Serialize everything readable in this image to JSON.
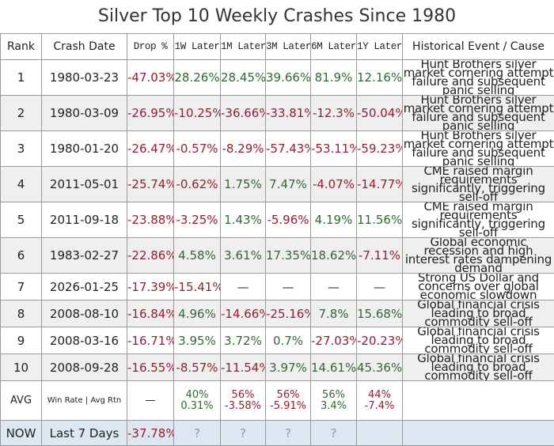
{
  "title": "Silver Top 10 Weekly Crashes Since 1980",
  "headers": [
    "Rank",
    "Crash Date",
    "Drop %",
    "1W Later",
    "1M Later",
    "3M Later",
    "6M Later",
    "1Y Later",
    "Historical Event / Cause"
  ],
  "rows": [
    {
      "rank": "1",
      "date": "1980-03-23",
      "vals": [
        "-47.03%",
        "28.26%",
        "28.45%",
        "39.66%",
        "81.9%",
        "12.16%"
      ],
      "event": "Hunt Brothers silver market cornering attempt failure and subsequent panic selling"
    },
    {
      "rank": "2",
      "date": "1980-03-09",
      "vals": [
        "-26.95%",
        "-10.25%",
        "-36.66%",
        "-33.81%",
        "-12.3%",
        "-50.04%"
      ],
      "event": "Hunt Brothers silver market cornering attempt failure and subsequent panic selling"
    },
    {
      "rank": "3",
      "date": "1980-01-20",
      "vals": [
        "-26.47%",
        "-0.57%",
        "-8.29%",
        "-57.43%",
        "-53.11%",
        "-59.23%"
      ],
      "event": "Hunt Brothers silver market cornering attempt failure and subsequent panic selling"
    },
    {
      "rank": "4",
      "date": "2011-05-01",
      "vals": [
        "-25.74%",
        "-0.62%",
        "1.75%",
        "7.47%",
        "-4.07%",
        "-14.77%"
      ],
      "event": "CME raised margin requirements significantly, triggering sell-off"
    },
    {
      "rank": "5",
      "date": "2011-09-18",
      "vals": [
        "-23.88%",
        "-3.25%",
        "1.43%",
        "-5.96%",
        "4.19%",
        "11.56%"
      ],
      "event": "CME raised margin requirements significantly, triggering sell-off"
    },
    {
      "rank": "6",
      "date": "1983-02-27",
      "vals": [
        "-22.86%",
        "4.58%",
        "3.61%",
        "17.35%",
        "18.62%",
        "-7.11%"
      ],
      "event": "Global economic recession and high interest rates dampening demand"
    },
    {
      "rank": "7",
      "date": "2026-01-25",
      "vals": [
        "-17.39%",
        "-15.41%",
        "—",
        "—",
        "—",
        "—"
      ],
      "event": "Strong US Dollar and concerns over global economic slowdown"
    },
    {
      "rank": "8",
      "date": "2008-08-10",
      "vals": [
        "-16.84%",
        "4.96%",
        "-14.66%",
        "-25.16%",
        "7.8%",
        "15.68%"
      ],
      "event": "Global financial crisis leading to broad commodity sell-off"
    },
    {
      "rank": "9",
      "date": "2008-03-16",
      "vals": [
        "-16.71%",
        "3.95%",
        "3.72%",
        "0.7%",
        "-27.03%",
        "-20.23%"
      ],
      "event": "Global financial crisis leading to broad commodity sell-off"
    },
    {
      "rank": "10",
      "date": "2008-09-28",
      "vals": [
        "-16.55%",
        "-8.57%",
        "-11.54%",
        "3.97%",
        "14.61%",
        "45.36%"
      ],
      "event": "Global financial crisis leading to broad commodity sell-off"
    }
  ],
  "avg": {
    "label": "AVG",
    "sub": "Win Rate | Avg Rtn",
    "drop": "—",
    "cells": [
      {
        "win": "40%",
        "rtn": "0.31%",
        "tone": "pos"
      },
      {
        "win": "56%",
        "rtn": "-3.58%",
        "tone": "neg"
      },
      {
        "win": "56%",
        "rtn": "-5.91%",
        "tone": "neg"
      },
      {
        "win": "56%",
        "rtn": "3.4%",
        "tone": "pos"
      },
      {
        "win": "44%",
        "rtn": "-7.4%",
        "tone": "neg"
      }
    ]
  },
  "now": {
    "label": "NOW",
    "period": "Last 7 Days",
    "drop": "-37.78%",
    "cells": [
      "?",
      "?",
      "?",
      "?",
      ""
    ]
  },
  "colors": {
    "negative": "#9b1c2a",
    "positive": "#2e6b2e",
    "now_bg": "#dce7f2"
  }
}
